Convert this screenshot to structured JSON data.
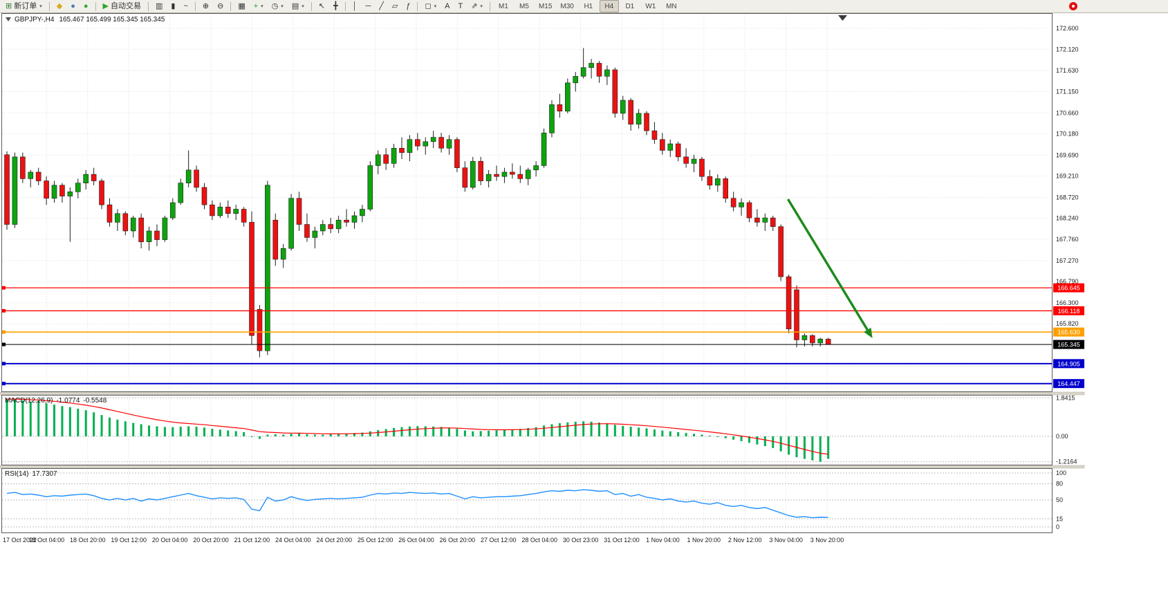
{
  "toolbar": {
    "new_order": {
      "icon": "new-order-chart-icon",
      "glyph": "⊞",
      "glyph_color": "#2e7d32",
      "label": "新订单"
    },
    "window_icons": [
      {
        "name": "metaeditor-icon",
        "glyph": "◆",
        "color": "#dba81c"
      },
      {
        "name": "navigator-icon",
        "glyph": "●",
        "color": "#4a7ab5"
      },
      {
        "name": "alerts-icon",
        "glyph": "●",
        "color": "#3aa33a"
      }
    ],
    "auto_trading": {
      "icon": "autotrading-play-icon",
      "glyph": "▶",
      "glyph_color": "#2fa32f",
      "label": "自动交易"
    },
    "tools": [
      {
        "name": "bar-chart-icon",
        "glyph": "▥"
      },
      {
        "name": "candlestick-chart-icon",
        "glyph": "▮"
      },
      {
        "name": "line-chart-icon",
        "glyph": "~"
      },
      {
        "sep": true
      },
      {
        "name": "zoom-in-icon",
        "glyph": "⊕"
      },
      {
        "name": "zoom-out-icon",
        "glyph": "⊖"
      },
      {
        "sep": true
      },
      {
        "name": "tile-windows-icon",
        "glyph": "▦"
      },
      {
        "name": "indicators-icon",
        "glyph": "+",
        "color": "#1e9e1e",
        "caret": true
      },
      {
        "name": "periods-icon",
        "glyph": "◷",
        "caret": true
      },
      {
        "name": "templates-icon",
        "glyph": "▤",
        "caret": true
      },
      {
        "sep": true
      },
      {
        "name": "cursor-icon",
        "glyph": "↖"
      },
      {
        "name": "crosshair-icon",
        "glyph": "╋"
      },
      {
        "sep": true
      },
      {
        "name": "vertical-line-icon",
        "glyph": "│"
      },
      {
        "name": "horizontal-line-icon",
        "glyph": "─"
      },
      {
        "name": "trendline-icon",
        "glyph": "╱"
      },
      {
        "name": "channel-icon",
        "glyph": "▱"
      },
      {
        "name": "fibonacci-icon",
        "glyph": "ƒ"
      },
      {
        "sep": true
      },
      {
        "name": "shapes-icon",
        "glyph": "◻",
        "caret": true
      },
      {
        "name": "text-icon",
        "glyph": "A"
      },
      {
        "name": "text-label-icon",
        "glyph": "T"
      },
      {
        "name": "arrows-icon",
        "glyph": "⇗",
        "caret": true
      }
    ],
    "timeframes": [
      "M1",
      "M5",
      "M15",
      "M30",
      "H1",
      "H4",
      "D1",
      "W1",
      "MN"
    ],
    "active_timeframe": "H4",
    "right_icons": [
      {
        "name": "notification-icon"
      }
    ]
  },
  "chart": {
    "symbol_period": "GBPJPY-,H4",
    "ohlc": "165.467 165.499 165.345 165.345",
    "price_ticks": [
      172.6,
      172.12,
      171.63,
      171.15,
      170.66,
      170.18,
      169.69,
      169.21,
      168.72,
      168.24,
      167.76,
      167.27,
      166.79,
      166.3,
      165.82
    ],
    "grid_only_prices": [
      165.33,
      164.84,
      164.36
    ],
    "hlines": [
      {
        "name": "resistance-line-1",
        "price": 166.645,
        "label": "166.645",
        "color": "#ff0000",
        "badge": "#ff0000",
        "width": 1.2
      },
      {
        "name": "resistance-line-2",
        "price": 166.118,
        "label": "166.118",
        "color": "#ff0000",
        "badge": "#ff0000",
        "width": 1.4
      },
      {
        "name": "support-line-orange",
        "price": 165.63,
        "label": "165.630",
        "color": "#ffa000",
        "badge": "#ffa000",
        "width": 1.6
      },
      {
        "name": "bid-price-line",
        "price": 165.345,
        "label": "165.345",
        "color": "#000000",
        "badge": "#000000",
        "width": 1
      },
      {
        "name": "support-line-blue-1",
        "price": 164.905,
        "label": "164.905",
        "color": "#0000cc",
        "badge": "#0000cc",
        "width": 2
      },
      {
        "name": "support-line-blue-2",
        "price": 164.447,
        "label": "164.447",
        "color": "#0000cc",
        "badge": "#0000cc",
        "width": 2
      }
    ],
    "trend_arrow": {
      "from_index": 98.9,
      "from_price": 168.68,
      "to_index": 109.6,
      "to_price": 165.49,
      "color": "#1e8a1e"
    },
    "colors": {
      "up": "#0da50d",
      "down": "#ee1111",
      "wick": "#1e1e1e",
      "grid": "#dedede",
      "macd_hist": "#00b050",
      "macd_signal": "#ff0000",
      "rsi_line": "#1e90ff"
    }
  },
  "chart_data": {
    "type": "candlestick",
    "symbol": "GBPJPY-",
    "timeframe": "H4",
    "last_ohlc": {
      "open": 165.467,
      "high": 165.499,
      "low": 165.345,
      "close": 165.345
    },
    "x_labels": [
      "17 Oct 2022",
      "18 Oct 04:00",
      "18 Oct 20:00",
      "19 Oct 12:00",
      "20 Oct 04:00",
      "20 Oct 20:00",
      "21 Oct 12:00",
      "24 Oct 04:00",
      "24 Oct 20:00",
      "25 Oct 12:00",
      "26 Oct 04:00",
      "26 Oct 20:00",
      "27 Oct 12:00",
      "28 Oct 04:00",
      "30 Oct 23:00",
      "31 Oct 12:00",
      "1 Nov 04:00",
      "1 Nov 20:00",
      "2 Nov 12:00",
      "3 Nov 04:00",
      "3 Nov 20:00"
    ],
    "candles": [
      [
        169.7,
        169.78,
        167.98,
        168.1
      ],
      [
        168.1,
        169.75,
        168.02,
        169.65
      ],
      [
        169.65,
        169.75,
        169.05,
        169.15
      ],
      [
        169.15,
        169.35,
        168.95,
        169.3
      ],
      [
        169.3,
        169.4,
        169.0,
        169.1
      ],
      [
        169.1,
        169.2,
        168.55,
        168.7
      ],
      [
        168.7,
        169.1,
        168.6,
        169.0
      ],
      [
        169.0,
        169.05,
        168.6,
        168.75
      ],
      [
        168.75,
        168.95,
        167.7,
        168.85
      ],
      [
        168.85,
        169.15,
        168.7,
        169.05
      ],
      [
        169.05,
        169.35,
        168.9,
        169.25
      ],
      [
        169.25,
        169.4,
        169.0,
        169.1
      ],
      [
        169.1,
        169.15,
        168.45,
        168.55
      ],
      [
        168.55,
        168.7,
        168.05,
        168.15
      ],
      [
        168.15,
        168.45,
        167.95,
        168.35
      ],
      [
        168.35,
        168.4,
        167.85,
        167.95
      ],
      [
        167.95,
        168.3,
        167.8,
        168.25
      ],
      [
        168.25,
        168.35,
        167.55,
        167.7
      ],
      [
        167.7,
        168.05,
        167.5,
        167.95
      ],
      [
        167.95,
        168.1,
        167.6,
        167.75
      ],
      [
        167.75,
        168.3,
        167.7,
        168.25
      ],
      [
        168.25,
        168.7,
        168.2,
        168.6
      ],
      [
        168.6,
        169.15,
        168.55,
        169.05
      ],
      [
        169.05,
        169.8,
        168.95,
        169.35
      ],
      [
        169.35,
        169.45,
        168.85,
        168.95
      ],
      [
        168.95,
        169.05,
        168.45,
        168.55
      ],
      [
        168.55,
        168.65,
        168.2,
        168.3
      ],
      [
        168.3,
        168.6,
        168.25,
        168.5
      ],
      [
        168.5,
        168.65,
        168.25,
        168.35
      ],
      [
        168.35,
        168.55,
        168.2,
        168.45
      ],
      [
        168.45,
        168.5,
        168.05,
        168.15
      ],
      [
        168.15,
        168.4,
        165.35,
        165.55
      ],
      [
        166.15,
        166.25,
        165.05,
        165.2
      ],
      [
        165.2,
        169.1,
        165.1,
        169.0
      ],
      [
        168.2,
        168.35,
        167.15,
        167.3
      ],
      [
        167.3,
        167.65,
        167.1,
        167.55
      ],
      [
        167.55,
        168.8,
        167.5,
        168.7
      ],
      [
        168.7,
        168.85,
        167.95,
        168.1
      ],
      [
        168.1,
        168.35,
        167.7,
        167.8
      ],
      [
        167.8,
        168.05,
        167.55,
        167.95
      ],
      [
        167.95,
        168.2,
        167.85,
        168.1
      ],
      [
        168.1,
        168.25,
        167.9,
        168.0
      ],
      [
        168.0,
        168.3,
        167.9,
        168.2
      ],
      [
        168.2,
        168.45,
        168.05,
        168.15
      ],
      [
        168.15,
        168.4,
        168.0,
        168.3
      ],
      [
        168.3,
        168.55,
        168.15,
        168.45
      ],
      [
        168.45,
        169.55,
        168.4,
        169.45
      ],
      [
        169.45,
        169.8,
        169.25,
        169.7
      ],
      [
        169.7,
        169.85,
        169.35,
        169.5
      ],
      [
        169.5,
        169.95,
        169.4,
        169.85
      ],
      [
        169.85,
        170.1,
        169.6,
        169.75
      ],
      [
        169.75,
        170.15,
        169.55,
        170.05
      ],
      [
        170.05,
        170.2,
        169.8,
        169.9
      ],
      [
        169.9,
        170.1,
        169.7,
        170.0
      ],
      [
        170.0,
        170.25,
        169.85,
        170.1
      ],
      [
        170.1,
        170.2,
        169.75,
        169.85
      ],
      [
        169.85,
        170.15,
        169.7,
        170.05
      ],
      [
        170.05,
        170.1,
        169.3,
        169.4
      ],
      [
        169.4,
        169.55,
        168.85,
        168.95
      ],
      [
        168.95,
        169.65,
        168.9,
        169.55
      ],
      [
        169.55,
        169.65,
        169.0,
        169.1
      ],
      [
        169.1,
        169.35,
        168.95,
        169.25
      ],
      [
        169.25,
        169.45,
        169.1,
        169.2
      ],
      [
        169.2,
        169.4,
        169.05,
        169.3
      ],
      [
        169.3,
        169.5,
        169.15,
        169.25
      ],
      [
        169.25,
        169.45,
        169.05,
        169.15
      ],
      [
        169.15,
        169.4,
        169.0,
        169.35
      ],
      [
        169.35,
        169.55,
        169.2,
        169.45
      ],
      [
        169.45,
        170.3,
        169.4,
        170.2
      ],
      [
        170.2,
        170.95,
        170.1,
        170.85
      ],
      [
        170.85,
        171.1,
        170.55,
        170.7
      ],
      [
        170.7,
        171.45,
        170.65,
        171.35
      ],
      [
        171.35,
        171.6,
        171.15,
        171.5
      ],
      [
        171.5,
        172.15,
        171.45,
        171.7
      ],
      [
        171.7,
        171.9,
        171.45,
        171.8
      ],
      [
        171.8,
        171.85,
        171.35,
        171.5
      ],
      [
        171.5,
        171.75,
        171.3,
        171.65
      ],
      [
        171.65,
        171.7,
        170.55,
        170.65
      ],
      [
        170.65,
        171.05,
        170.5,
        170.95
      ],
      [
        170.95,
        171.0,
        170.25,
        170.4
      ],
      [
        170.4,
        170.75,
        170.3,
        170.65
      ],
      [
        170.65,
        170.7,
        170.15,
        170.25
      ],
      [
        170.25,
        170.45,
        169.95,
        170.05
      ],
      [
        170.05,
        170.2,
        169.7,
        169.8
      ],
      [
        169.8,
        170.05,
        169.65,
        169.95
      ],
      [
        169.95,
        170.0,
        169.55,
        169.65
      ],
      [
        169.65,
        169.85,
        169.4,
        169.5
      ],
      [
        169.5,
        169.7,
        169.3,
        169.6
      ],
      [
        169.6,
        169.65,
        169.1,
        169.2
      ],
      [
        169.2,
        169.35,
        168.9,
        169.0
      ],
      [
        169.0,
        169.25,
        168.85,
        169.15
      ],
      [
        169.15,
        169.2,
        168.6,
        168.7
      ],
      [
        168.7,
        168.85,
        168.4,
        168.5
      ],
      [
        168.5,
        168.7,
        168.3,
        168.6
      ],
      [
        168.6,
        168.65,
        168.15,
        168.25
      ],
      [
        168.25,
        168.45,
        168.05,
        168.15
      ],
      [
        168.15,
        168.35,
        167.95,
        168.25
      ],
      [
        168.25,
        168.3,
        167.95,
        168.05
      ],
      [
        168.05,
        168.1,
        166.8,
        166.9
      ],
      [
        166.9,
        166.95,
        165.6,
        165.7
      ],
      [
        166.6,
        166.7,
        165.28,
        165.45
      ],
      [
        165.45,
        165.6,
        165.3,
        165.55
      ],
      [
        165.55,
        165.58,
        165.3,
        165.38
      ],
      [
        165.38,
        165.5,
        165.3,
        165.47
      ],
      [
        165.467,
        165.499,
        165.345,
        165.345
      ]
    ],
    "indicators": {
      "macd": {
        "label": "MACD(12,26,9)",
        "value_main": "-1.0774",
        "value_signal": "-0.5548",
        "scale": [
          {
            "v": 1.8415,
            "t": "1.8415"
          },
          {
            "v": 0,
            "t": "0.00"
          },
          {
            "v": -1.2164,
            "t": "-1.2164"
          }
        ],
        "values": [
          1.78,
          1.8,
          1.72,
          1.66,
          1.7,
          1.58,
          1.52,
          1.45,
          1.4,
          1.32,
          1.25,
          1.15,
          1.02,
          0.9,
          0.8,
          0.72,
          0.64,
          0.58,
          0.52,
          0.48,
          0.45,
          0.44,
          0.46,
          0.48,
          0.46,
          0.42,
          0.36,
          0.32,
          0.28,
          0.25,
          0.2,
          -0.02,
          -0.12,
          0.08,
          0.1,
          0.08,
          0.12,
          0.14,
          0.1,
          0.08,
          0.08,
          0.1,
          0.12,
          0.14,
          0.16,
          0.18,
          0.24,
          0.3,
          0.35,
          0.4,
          0.44,
          0.47,
          0.49,
          0.48,
          0.47,
          0.45,
          0.42,
          0.36,
          0.28,
          0.24,
          0.25,
          0.27,
          0.29,
          0.31,
          0.33,
          0.36,
          0.4,
          0.44,
          0.52,
          0.58,
          0.63,
          0.67,
          0.7,
          0.72,
          0.7,
          0.66,
          0.62,
          0.55,
          0.5,
          0.46,
          0.42,
          0.38,
          0.33,
          0.28,
          0.24,
          0.2,
          0.16,
          0.12,
          0.08,
          0.03,
          -0.03,
          -0.09,
          -0.16,
          -0.23,
          -0.31,
          -0.39,
          -0.47,
          -0.56,
          -0.72,
          -0.88,
          -1.0,
          -1.08,
          -1.15,
          -1.2164,
          -1.0774
        ]
      },
      "rsi": {
        "label": "RSI(14)",
        "value": "17.7307",
        "scale": [
          {
            "v": 100,
            "t": "100"
          },
          {
            "v": 80,
            "t": "80"
          },
          {
            "v": 50,
            "t": "50"
          },
          {
            "v": 15,
            "t": "15"
          },
          {
            "v": 0,
            "t": "0"
          }
        ],
        "values": [
          62,
          64,
          60,
          61,
          59,
          56,
          58,
          57,
          59,
          60,
          61,
          58,
          53,
          50,
          53,
          50,
          53,
          48,
          52,
          50,
          53,
          56,
          59,
          62,
          58,
          55,
          52,
          54,
          53,
          54,
          51,
          33,
          30,
          55,
          48,
          50,
          56,
          52,
          49,
          51,
          52,
          53,
          52,
          53,
          54,
          55,
          59,
          62,
          61,
          63,
          62,
          64,
          63,
          62,
          63,
          61,
          62,
          57,
          52,
          56,
          54,
          55,
          56,
          56,
          57,
          58,
          60,
          62,
          65,
          67,
          66,
          68,
          67,
          69,
          68,
          66,
          67,
          60,
          62,
          57,
          60,
          55,
          53,
          50,
          52,
          48,
          46,
          48,
          44,
          42,
          45,
          40,
          38,
          40,
          36,
          34,
          36,
          31,
          26,
          21,
          18,
          19,
          17,
          18,
          17.73
        ]
      }
    }
  }
}
